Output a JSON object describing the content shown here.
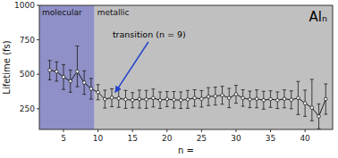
{
  "chart_data": {
    "type": "line",
    "title": "Alₙ",
    "xlabel": "n =",
    "ylabel": "Lifetime (fs)",
    "xlim": [
      1.5,
      44
    ],
    "ylim": [
      100,
      1000
    ],
    "xticks": [
      5,
      10,
      15,
      20,
      25,
      30,
      35,
      40
    ],
    "yticks": [
      250,
      500,
      750,
      1000
    ],
    "grid": false,
    "color": "#1a1a1a",
    "marker": "circle",
    "x": [
      3,
      4,
      5,
      6,
      7,
      8,
      9,
      10,
      11,
      12,
      13,
      14,
      15,
      16,
      17,
      18,
      19,
      20,
      21,
      22,
      23,
      24,
      25,
      26,
      27,
      28,
      29,
      30,
      31,
      32,
      33,
      34,
      35,
      36,
      37,
      38,
      39,
      40,
      41,
      42,
      43
    ],
    "values": [
      530,
      520,
      480,
      450,
      520,
      440,
      395,
      370,
      320,
      330,
      325,
      318,
      312,
      320,
      318,
      328,
      312,
      320,
      315,
      312,
      318,
      328,
      322,
      338,
      342,
      348,
      328,
      355,
      328,
      318,
      322,
      312,
      320,
      312,
      322,
      315,
      328,
      290,
      258,
      195,
      320
    ],
    "errors_low": [
      70,
      70,
      90,
      80,
      110,
      85,
      75,
      55,
      65,
      65,
      65,
      65,
      55,
      65,
      65,
      65,
      60,
      55,
      60,
      60,
      65,
      60,
      60,
      65,
      65,
      65,
      70,
      65,
      60,
      60,
      65,
      65,
      60,
      60,
      65,
      65,
      120,
      95,
      95,
      90,
      110
    ],
    "errors_high": [
      70,
      70,
      90,
      80,
      185,
      85,
      75,
      55,
      65,
      65,
      65,
      65,
      55,
      65,
      65,
      65,
      60,
      55,
      60,
      60,
      65,
      60,
      60,
      65,
      65,
      65,
      70,
      65,
      60,
      60,
      65,
      65,
      60,
      60,
      65,
      65,
      120,
      95,
      205,
      90,
      110
    ],
    "regions": [
      {
        "label": "molecular",
        "x0": 1.5,
        "x1": 9.5,
        "color": "#9090c8"
      },
      {
        "label": "metallic",
        "x0": 9.5,
        "x1": 44,
        "color": "#c0c0c0"
      }
    ],
    "annotations": [
      {
        "text": "transition (n = 9)",
        "x": 12.5,
        "y": 370,
        "color": "#2244cc"
      }
    ]
  }
}
